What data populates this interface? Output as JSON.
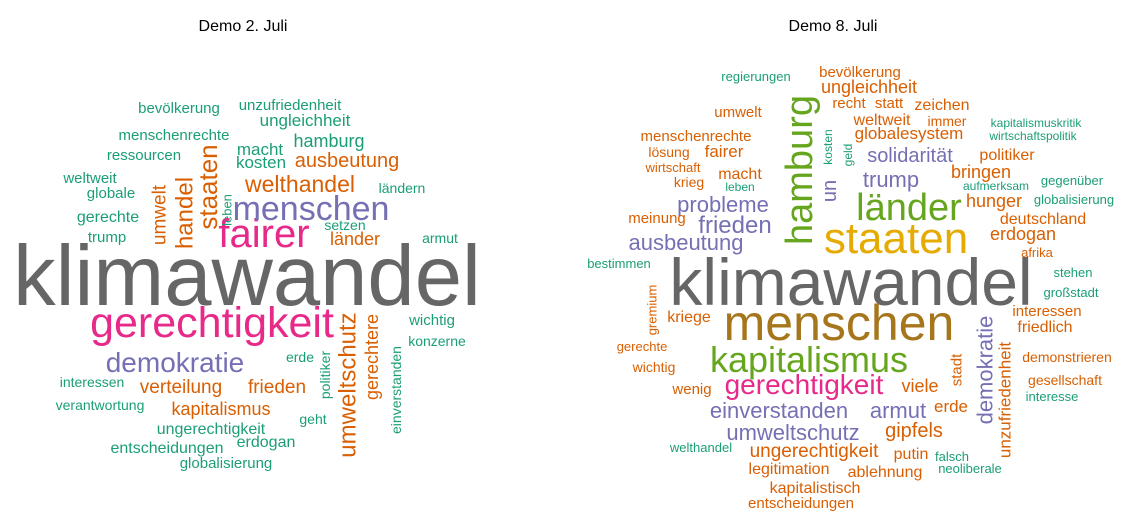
{
  "clouds": [
    {
      "title": "Demo 2. Juli",
      "words": [
        "klimawandel",
        "gerechtigkeit",
        "demokratie",
        "fairer",
        "menschen",
        "welthandel",
        "ausbeutung",
        "hamburg",
        "kosten",
        "macht",
        "ungleichheit",
        "unzufriedenheit",
        "bevölkerung",
        "menschenrechte",
        "ressourcen",
        "weltweit",
        "globale",
        "gerechte",
        "trump",
        "handel",
        "umwelt",
        "staaten",
        "leben",
        "länder",
        "setzen",
        "ländern",
        "armut",
        "umweltschutz",
        "gerechtere",
        "einverstanden",
        "politiker",
        "wichtig",
        "konzerne",
        "erde",
        "verteilung",
        "frieden",
        "interessen",
        "verantwortung",
        "kapitalismus",
        "geht",
        "ungerechtigkeit",
        "entscheidungen",
        "erdogan",
        "globalisierung"
      ]
    },
    {
      "title": "Demo 8. Juli",
      "words": [
        "klimawandel",
        "staaten",
        "menschen",
        "kapitalismus",
        "hamburg",
        "länder",
        "gerechtigkeit",
        "einverstanden",
        "armut",
        "umweltschutz",
        "gipfels",
        "ungerechtigkeit",
        "putin",
        "legitimation",
        "ablehnung",
        "kapitalistisch",
        "entscheidungen",
        "falsch",
        "neoliberale",
        "welthandel",
        "wenig",
        "viele",
        "erde",
        "stadt",
        "demokratie",
        "unzufriedenheit",
        "interessen",
        "friedlich",
        "demonstrieren",
        "gesellschaft",
        "interesse",
        "großstadt",
        "stehen",
        "afrika",
        "erdogan",
        "deutschland",
        "hunger",
        "globalisierung",
        "aufmerksam",
        "gegenüber",
        "bringen",
        "politiker",
        "solidarität",
        "trump",
        "globalesystem",
        "weltweit",
        "immer",
        "kapitalismuskritik",
        "wirtschaftspolitik",
        "zeichen",
        "recht",
        "statt",
        "ungleichheit",
        "bevölkerung",
        "regierungen",
        "umwelt",
        "menschenrechte",
        "lösung",
        "fairer",
        "wirtschaft",
        "krieg",
        "macht",
        "leben",
        "probleme",
        "frieden",
        "meinung",
        "ausbeutung",
        "un",
        "kosten",
        "geld",
        "bestimmen",
        "gremium",
        "kriege",
        "gerechte",
        "wichtig"
      ]
    }
  ]
}
